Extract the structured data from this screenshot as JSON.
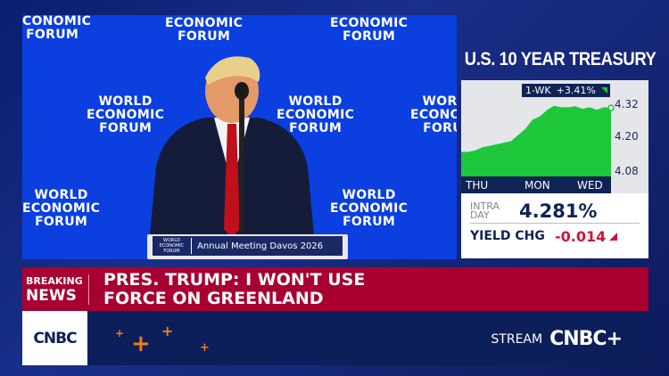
{
  "video": {
    "backdrop_logo_lines": [
      "WORLD",
      "ECONOMIC",
      "FORUM"
    ],
    "podium_logo": "WORLD ECONOMIC FORUM",
    "podium_text": "Annual Meeting Davos 2026"
  },
  "treasury": {
    "title": "U.S. 10 YEAR TREASURY",
    "badge_label": "1-WK",
    "badge_change": "+3.41%",
    "intraday_label_1": "INTRA",
    "intraday_label_2": "DAY",
    "intraday_value": "4.281%",
    "yield_chg_label": "YIELD CHG",
    "yield_chg_value": "-0.014",
    "colors": {
      "area": "#1ec73a",
      "navy": "#0f2354",
      "negative": "#d0143c"
    }
  },
  "chart_data": {
    "type": "area",
    "x_ticks": [
      "THU",
      "MON",
      "WED"
    ],
    "y_ticks": [
      "4.32",
      "4.20",
      "4.08"
    ],
    "ylim": [
      4.08,
      4.32
    ],
    "values": [
      4.145,
      4.145,
      4.15,
      4.16,
      4.165,
      4.17,
      4.175,
      4.18,
      4.2,
      4.22,
      4.25,
      4.26,
      4.28,
      4.295,
      4.29,
      4.29,
      4.293,
      4.285,
      4.29,
      4.282,
      4.29,
      4.288
    ],
    "last_point_marker": true
  },
  "breaking": {
    "label_top": "BREAKING",
    "label_bottom": "NEWS",
    "headline_line1": "PRES. TRUMP: I WON'T USE",
    "headline_line2": "FORCE ON GREENLAND"
  },
  "bottom_bar": {
    "network_logo": "CNBC",
    "stream_label": "STREAM",
    "stream_logo": "CNBC+",
    "accent_color": "#f07a16"
  }
}
